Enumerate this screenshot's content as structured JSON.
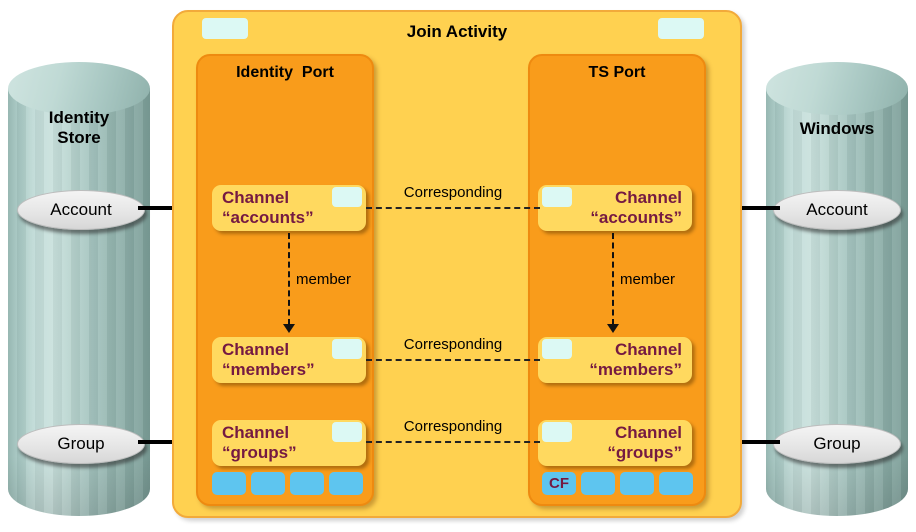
{
  "diagram": {
    "title": "Join Activity",
    "identity_store": {
      "name_line1": "Identity",
      "name_line2": "Store",
      "account_label": "Account",
      "group_label": "Group"
    },
    "windows_store": {
      "name": "Windows",
      "account_label": "Account",
      "group_label": "Group"
    },
    "identity_port": {
      "title": "Identity  Port",
      "channels": [
        {
          "line1": "Channel",
          "line2": "“accounts”"
        },
        {
          "line1": "Channel",
          "line2": "“members”"
        },
        {
          "line1": "Channel",
          "line2": "“groups”"
        }
      ],
      "member_arrow_label": "member"
    },
    "ts_port": {
      "title": "TS Port",
      "channels": [
        {
          "line1": "Channel",
          "line2": "“accounts”"
        },
        {
          "line1": "Channel",
          "line2": "“members”"
        },
        {
          "line1": "Channel",
          "line2": "“groups”"
        }
      ],
      "member_arrow_label": "member",
      "cf_label": "CF"
    },
    "links": {
      "corresponding_1": "Corresponding",
      "corresponding_2": "Corresponding",
      "corresponding_3": "Corresponding"
    },
    "colors": {
      "activity_fill": "#FFD150",
      "activity_border": "#F2AA3A",
      "port_fill": "#F99C1B",
      "channel_fill": "#FFD95F",
      "channel_text": "#751A42",
      "tab_fill": "#DCF9F4",
      "slot_fill": "#5EC5EF",
      "cylinder_teal": "#A7C7C2",
      "entity_fill": "#E9E9E9"
    }
  }
}
